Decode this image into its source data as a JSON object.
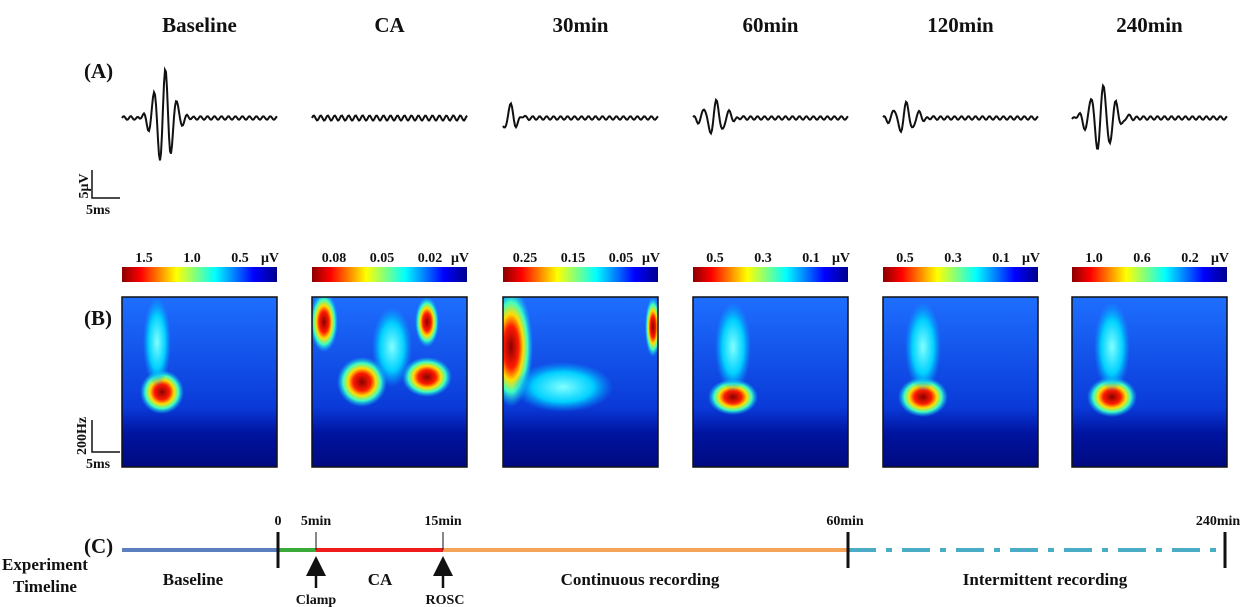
{
  "panels": [
    "(A)",
    "(B)",
    "(C)"
  ],
  "columns": [
    "Baseline",
    "CA",
    "30min",
    "60min",
    "120min",
    "240min"
  ],
  "waveform_scale": {
    "amplitude": "5μV",
    "time": "5ms"
  },
  "spectrogram_scale": {
    "frequency": "200Hz",
    "time": "5ms"
  },
  "colorbar_unit": "μV",
  "colorbars": [
    [
      "1.5",
      "1.0",
      "0.5"
    ],
    [
      "0.08",
      "0.05",
      "0.02"
    ],
    [
      "0.25",
      "0.15",
      "0.05"
    ],
    [
      "0.5",
      "0.3",
      "0.1"
    ],
    [
      "0.5",
      "0.3",
      "0.1"
    ],
    [
      "1.0",
      "0.6",
      "0.2"
    ]
  ],
  "timeline": {
    "label": "Experiment Timeline",
    "ticks": [
      "0",
      "5min",
      "15min",
      "60min",
      "240min"
    ],
    "segments": [
      "Baseline",
      "CA",
      "Continuous recording",
      "Intermittent recording"
    ],
    "events": [
      "Clamp",
      "ROSC"
    ]
  }
}
